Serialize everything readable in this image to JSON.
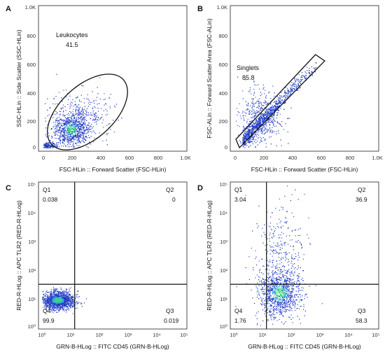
{
  "chart_data": [
    {
      "panel": "A",
      "type": "scatter",
      "xlabel": "FSC-HLin :: Forward Scatter (FSC-HLin)",
      "ylabel": "SSC-HLin :: Side Scatter (SSC-HLin)",
      "xlim": [
        0,
        1000
      ],
      "ylim": [
        0,
        1000
      ],
      "scale": "linear",
      "x_ticks": [
        "0",
        "200",
        "400",
        "600",
        "800",
        "1.0K"
      ],
      "y_ticks": [
        "0",
        "200",
        "400",
        "600",
        "800",
        "1.0K"
      ],
      "tick_values": [
        0,
        200,
        400,
        600,
        800,
        1000
      ],
      "gate": {
        "shape": "ellipse",
        "name": "Leukocytes",
        "value": "41.5",
        "center": [
          310,
          255
        ],
        "radii": [
          340,
          190
        ],
        "angle_deg": 42
      },
      "clusters": [
        {
          "mean": [
            190,
            130
          ],
          "sd": [
            60,
            60
          ],
          "weight": 0.55
        },
        {
          "mean": [
            260,
            210
          ],
          "sd": [
            110,
            90
          ],
          "weight": 0.3
        },
        {
          "mean": [
            30,
            15
          ],
          "sd": [
            30,
            12
          ],
          "weight": 0.15
        }
      ]
    },
    {
      "panel": "B",
      "type": "scatter",
      "xlabel": "FSC-HLin :: Forward Scatter (FSC-HLin)",
      "ylabel": "FSC-ALin :: Forward Scatter Area (FSC-ALin)",
      "xlim": [
        0,
        1000
      ],
      "ylim": [
        0,
        1000
      ],
      "scale": "linear",
      "x_ticks": [
        "0",
        "200",
        "400",
        "600",
        "800",
        "1.0K"
      ],
      "y_ticks": [
        "0",
        "200",
        "400",
        "600",
        "800",
        "1.0K"
      ],
      "tick_values": [
        0,
        200,
        400,
        600,
        800,
        1000
      ],
      "gate": {
        "shape": "polygon",
        "name": "Singlets",
        "value": "85.8",
        "vertices": [
          [
            5,
            60
          ],
          [
            565,
            665
          ],
          [
            630,
            620
          ],
          [
            30,
            0
          ]
        ]
      },
      "clusters": [
        {
          "diagonal": true,
          "x_range": [
            50,
            600
          ],
          "slope": 1.05,
          "offset": 0,
          "spread": 25,
          "weight": 0.6
        },
        {
          "mean": [
            180,
            220
          ],
          "sd": [
            70,
            90
          ],
          "weight": 0.35
        },
        {
          "mean": [
            100,
            60
          ],
          "sd": [
            40,
            30
          ],
          "weight": 0.05
        }
      ]
    },
    {
      "panel": "C",
      "type": "scatter",
      "xlabel": "GRN-B-HLog :: FITC CD45 (GRN-B-HLog)",
      "ylabel": "RED-R-HLog :: APC TLR2 (RED-R-HLog)",
      "xlim": [
        0,
        5
      ],
      "ylim": [
        0,
        5
      ],
      "scale": "log10",
      "x_ticks": [
        "10⁰",
        "10¹",
        "10²",
        "10³",
        "10⁴",
        "10⁵"
      ],
      "y_ticks": [
        "10⁰",
        "10¹",
        "10²",
        "10³",
        "10⁴",
        "10⁵"
      ],
      "tick_values": [
        0,
        1,
        2,
        3,
        4,
        5
      ],
      "quadrant_divider": {
        "x": 1.15,
        "y": 1.5
      },
      "quadrants": [
        {
          "label": "Q1",
          "value": "0.038"
        },
        {
          "label": "Q2",
          "value": "0"
        },
        {
          "label": "Q3",
          "value": "0.019"
        },
        {
          "label": "Q4",
          "value": "99.9"
        }
      ],
      "clusters": [
        {
          "mean": [
            0.55,
            0.95
          ],
          "sd": [
            0.28,
            0.16
          ],
          "weight": 1.0
        }
      ]
    },
    {
      "panel": "D",
      "type": "scatter",
      "xlabel": "GRN-B-HLog :: FITC CD45 (GRN-B-HLog)",
      "ylabel": "RED-R-HLog :: APC TLR2 (RED-R-HLog)",
      "xlim": [
        0,
        5
      ],
      "ylim": [
        0,
        5
      ],
      "scale": "log10",
      "x_ticks": [
        "10⁰",
        "10¹",
        "10²",
        "10³",
        "10⁴",
        "10⁵"
      ],
      "y_ticks": [
        "10⁰",
        "10¹",
        "10²",
        "10³",
        "10⁴",
        "10⁵"
      ],
      "tick_values": [
        0,
        1,
        2,
        3,
        4,
        5
      ],
      "quadrant_divider": {
        "x": 1.15,
        "y": 1.5
      },
      "quadrants": [
        {
          "label": "Q1",
          "value": "3.04"
        },
        {
          "label": "Q2",
          "value": "36.9"
        },
        {
          "label": "Q3",
          "value": "58.3"
        },
        {
          "label": "Q4",
          "value": "1.76"
        }
      ],
      "clusters": [
        {
          "mean": [
            1.6,
            1.2
          ],
          "sd": [
            0.35,
            0.4
          ],
          "weight": 0.7
        },
        {
          "mean": [
            1.7,
            2.3
          ],
          "sd": [
            0.4,
            1.0
          ],
          "weight": 0.27
        },
        {
          "mean": [
            0.8,
            1.5
          ],
          "sd": [
            0.4,
            1.2
          ],
          "weight": 0.03
        }
      ]
    }
  ],
  "panel_labels": [
    "A",
    "B",
    "C",
    "D"
  ]
}
